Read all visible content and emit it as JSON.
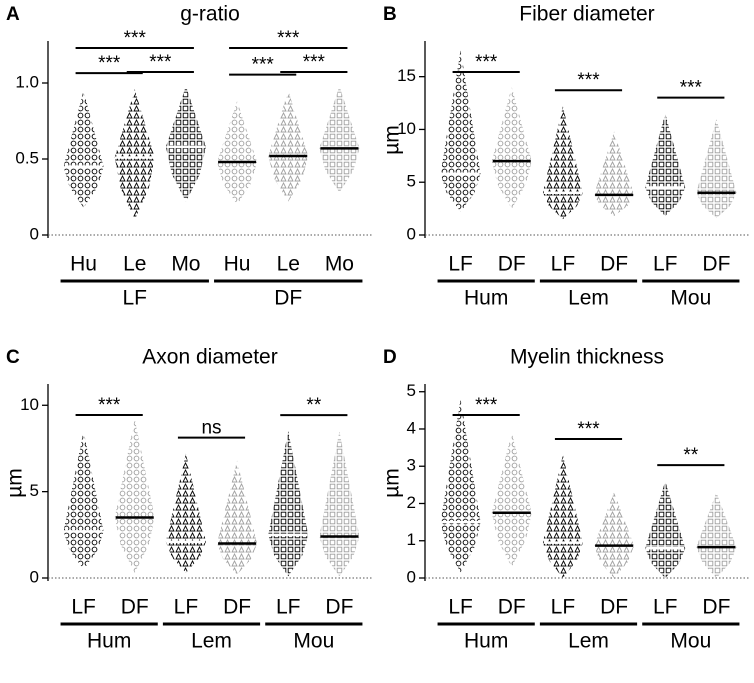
{
  "chart_data": [
    {
      "type": "dot",
      "panel": "A",
      "title": "g-ratio",
      "ylim": [
        0,
        1.25
      ],
      "yticks": [
        0,
        0.5,
        {
          "value": 1,
          "label": "1.0"
        }
      ],
      "groups": [
        {
          "name": "LF",
          "items": [
            {
              "name": "Hu",
              "marker": "circle",
              "color": "#000000",
              "median_color": "#ffffff",
              "median": 0.45,
              "min": 0.18,
              "max": 0.95
            },
            {
              "name": "Le",
              "marker": "triangle",
              "color": "#000000",
              "median_color": "#ffffff",
              "median": 0.51,
              "min": 0.1,
              "max": 0.96
            },
            {
              "name": "Mo",
              "marker": "square",
              "color": "#000000",
              "median_color": "#ffffff",
              "median": 0.58,
              "min": 0.22,
              "max": 0.98
            }
          ],
          "comparisons": [
            {
              "items": [
                0,
                2
              ],
              "label": "***"
            },
            {
              "items": [
                0,
                1
              ],
              "label": "***"
            },
            {
              "items": [
                1,
                2
              ],
              "label": "***"
            }
          ]
        },
        {
          "name": "DF",
          "items": [
            {
              "name": "Hu",
              "marker": "circle",
              "color": "#a0a0a0",
              "median_color": "#000000",
              "median": 0.48,
              "min": 0.2,
              "max": 0.88
            },
            {
              "name": "Le",
              "marker": "triangle",
              "color": "#a0a0a0",
              "median_color": "#000000",
              "median": 0.52,
              "min": 0.22,
              "max": 0.95
            },
            {
              "name": "Mo",
              "marker": "square",
              "color": "#a0a0a0",
              "median_color": "#000000",
              "median": 0.57,
              "min": 0.28,
              "max": 0.98
            }
          ],
          "comparisons": [
            {
              "items": [
                0,
                2
              ],
              "label": "***"
            },
            {
              "items": [
                0,
                1
              ],
              "label": "***"
            },
            {
              "items": [
                1,
                2
              ],
              "label": "***"
            }
          ]
        }
      ]
    },
    {
      "type": "dot",
      "panel": "B",
      "title": "Fiber diameter",
      "ylabel": "µm",
      "ylim": [
        0,
        18
      ],
      "yticks": [
        0,
        5,
        10,
        15
      ],
      "groups": [
        {
          "name": "Hum",
          "items": [
            {
              "name": "LF",
              "marker": "circle",
              "color": "#000000",
              "median_color": "#ffffff",
              "median": 5.8,
              "min": 2.2,
              "max": 17.5
            },
            {
              "name": "DF",
              "marker": "circle",
              "color": "#a0a0a0",
              "median_color": "#000000",
              "median": 7.0,
              "min": 2.5,
              "max": 14
            }
          ],
          "comparisons": [
            {
              "items": [
                0,
                1
              ],
              "label": "***"
            }
          ]
        },
        {
          "name": "Lem",
          "items": [
            {
              "name": "LF",
              "marker": "triangle",
              "color": "#000000",
              "median_color": "#ffffff",
              "median": 4.0,
              "min": 1.5,
              "max": 12.2
            },
            {
              "name": "DF",
              "marker": "triangle",
              "color": "#a0a0a0",
              "median_color": "#000000",
              "median": 3.8,
              "min": 1.8,
              "max": 9.8
            }
          ],
          "comparisons": [
            {
              "items": [
                0,
                1
              ],
              "label": "***"
            }
          ]
        },
        {
          "name": "Mou",
          "items": [
            {
              "name": "LF",
              "marker": "square",
              "color": "#000000",
              "median_color": "#ffffff",
              "median": 4.5,
              "min": 1.8,
              "max": 11.5
            },
            {
              "name": "DF",
              "marker": "square",
              "color": "#a0a0a0",
              "median_color": "#000000",
              "median": 4.0,
              "min": 1.6,
              "max": 11
            }
          ],
          "comparisons": [
            {
              "items": [
                0,
                1
              ],
              "label": "***"
            }
          ]
        }
      ]
    },
    {
      "type": "dot",
      "panel": "C",
      "title": "Axon diameter",
      "ylabel": "µm",
      "ylim": [
        0,
        11
      ],
      "yticks": [
        0,
        5,
        10
      ],
      "groups": [
        {
          "name": "Hum",
          "items": [
            {
              "name": "LF",
              "marker": "circle",
              "color": "#000000",
              "median_color": "#ffffff",
              "median": 2.7,
              "min": 0.5,
              "max": 8.5
            },
            {
              "name": "DF",
              "marker": "circle",
              "color": "#a0a0a0",
              "median_color": "#000000",
              "median": 3.5,
              "min": 0.3,
              "max": 9.2
            }
          ],
          "comparisons": [
            {
              "items": [
                0,
                1
              ],
              "label": "***"
            }
          ]
        },
        {
          "name": "Lem",
          "items": [
            {
              "name": "LF",
              "marker": "triangle",
              "color": "#000000",
              "median_color": "#ffffff",
              "median": 2.1,
              "min": 0.3,
              "max": 7.2
            },
            {
              "name": "DF",
              "marker": "triangle",
              "color": "#a0a0a0",
              "median_color": "#000000",
              "median": 2.0,
              "min": 0.2,
              "max": 6.8
            }
          ],
          "comparisons": [
            {
              "items": [
                0,
                1
              ],
              "label": "ns"
            }
          ]
        },
        {
          "name": "Mou",
          "items": [
            {
              "name": "LF",
              "marker": "square",
              "color": "#000000",
              "median_color": "#ffffff",
              "median": 2.5,
              "min": 0.1,
              "max": 8.5
            },
            {
              "name": "DF",
              "marker": "square",
              "color": "#a0a0a0",
              "median_color": "#000000",
              "median": 2.4,
              "min": 0.1,
              "max": 8.5
            }
          ],
          "comparisons": [
            {
              "items": [
                0,
                1
              ],
              "label": "**"
            }
          ]
        }
      ]
    },
    {
      "type": "dot",
      "panel": "D",
      "title": "Myelin thickness",
      "ylabel": "µm",
      "ylim": [
        0,
        5.1
      ],
      "yticks": [
        0,
        1,
        2,
        3,
        4,
        5
      ],
      "groups": [
        {
          "name": "Hum",
          "items": [
            {
              "name": "LF",
              "marker": "circle",
              "color": "#000000",
              "median_color": "#ffffff",
              "median": 1.5,
              "min": 0.15,
              "max": 4.8
            },
            {
              "name": "DF",
              "marker": "circle",
              "color": "#a0a0a0",
              "median_color": "#000000",
              "median": 1.75,
              "min": 0.3,
              "max": 3.9
            }
          ],
          "comparisons": [
            {
              "items": [
                0,
                1
              ],
              "label": "***"
            }
          ]
        },
        {
          "name": "Lem",
          "items": [
            {
              "name": "LF",
              "marker": "triangle",
              "color": "#000000",
              "median_color": "#ffffff",
              "median": 0.95,
              "min": 0,
              "max": 3.3
            },
            {
              "name": "DF",
              "marker": "triangle",
              "color": "#a0a0a0",
              "median_color": "#000000",
              "median": 0.87,
              "min": 0,
              "max": 2.3
            }
          ],
          "comparisons": [
            {
              "items": [
                0,
                1
              ],
              "label": "***"
            }
          ]
        },
        {
          "name": "Mou",
          "items": [
            {
              "name": "LF",
              "marker": "square",
              "color": "#000000",
              "median_color": "#ffffff",
              "median": 0.8,
              "min": 0,
              "max": 2.6
            },
            {
              "name": "DF",
              "marker": "square",
              "color": "#a0a0a0",
              "median_color": "#000000",
              "median": 0.83,
              "min": 0,
              "max": 2.3
            }
          ],
          "comparisons": [
            {
              "items": [
                0,
                1
              ],
              "label": "**"
            }
          ]
        }
      ]
    }
  ]
}
